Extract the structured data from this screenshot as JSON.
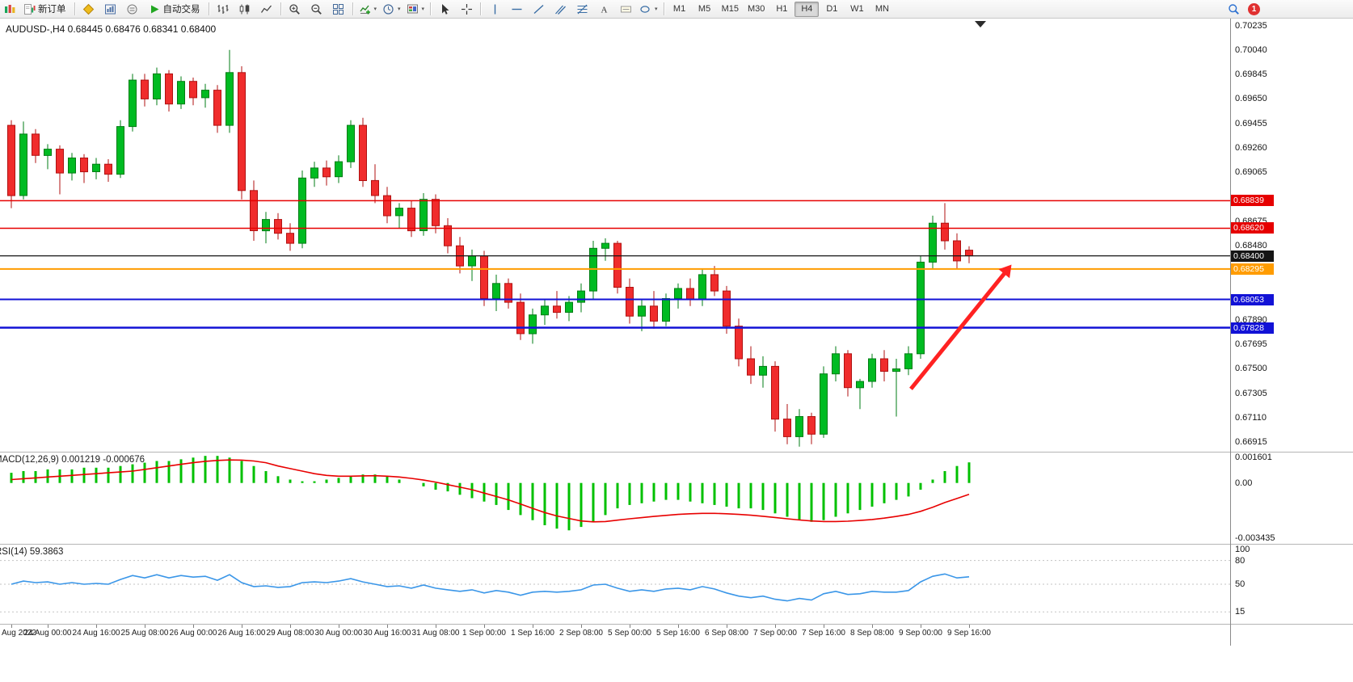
{
  "toolbar": {
    "new_order_label": "新订单",
    "autotrade_label": "自动交易",
    "timeframes": [
      "M1",
      "M5",
      "M15",
      "M30",
      "H1",
      "H4",
      "D1",
      "W1",
      "MN"
    ],
    "active_timeframe": "H4",
    "notification_count": "1"
  },
  "header": {
    "symbol_ohlc": "AUDUSD-,H4 0.68445 0.68476 0.68341 0.68400"
  },
  "indicator_labels": {
    "macd": "MACD(12,26,9) 0.001219 -0.000676",
    "rsi": "RSI(14) 59.3863"
  },
  "chart_data": {
    "type": "candlestick",
    "symbol": "AUDUSD-",
    "timeframe": "H4",
    "last_ohlc": {
      "open": 0.68445,
      "high": 0.68476,
      "low": 0.68341,
      "close": 0.684
    },
    "up_color": "#00bb22",
    "up_stroke": "#007d14",
    "down_color": "#f02c2c",
    "down_stroke": "#b01111",
    "scale": {
      "p_max": 0.7029,
      "p_min": 0.6684
    },
    "price_axis_ticks": [
      "0.70235",
      "0.70040",
      "0.69845",
      "0.69650",
      "0.69455",
      "0.69260",
      "0.69065",
      "0.68675",
      "0.68480",
      "0.67890",
      "0.67695",
      "0.67500",
      "0.67305",
      "0.67110",
      "0.66915"
    ],
    "hlines": [
      {
        "price": 0.68839,
        "label": "0.68839",
        "color": "#e60000",
        "w": 1.5
      },
      {
        "price": 0.6862,
        "label": "0.68620",
        "color": "#e60000",
        "w": 1.5
      },
      {
        "price": 0.684,
        "label": "0.68400",
        "color": "#151515",
        "w": 1.2
      },
      {
        "price": 0.68295,
        "label": "0.68295",
        "color": "#ff9c00",
        "w": 2
      },
      {
        "price": 0.68053,
        "label": "0.68053",
        "color": "#1212d6",
        "w": 2
      },
      {
        "price": 0.67828,
        "label": "0.67828",
        "color": "#1212d6",
        "w": 2.4
      }
    ],
    "arrow": {
      "from_bar": 74.2,
      "from_price": 0.6734,
      "to_bar": 82.5,
      "to_price": 0.6833,
      "color": "#ff2222"
    },
    "candles": [
      [
        0.6944,
        0.6948,
        0.6878,
        0.6888
      ],
      [
        0.6888,
        0.6947,
        0.6885,
        0.6937
      ],
      [
        0.6937,
        0.6941,
        0.6914,
        0.692
      ],
      [
        0.692,
        0.6929,
        0.6909,
        0.6925
      ],
      [
        0.6925,
        0.6928,
        0.6889,
        0.6906
      ],
      [
        0.6906,
        0.6922,
        0.69,
        0.6918
      ],
      [
        0.6918,
        0.6921,
        0.6898,
        0.6907
      ],
      [
        0.6907,
        0.6918,
        0.6901,
        0.6913
      ],
      [
        0.6913,
        0.6917,
        0.6899,
        0.6905
      ],
      [
        0.6905,
        0.6948,
        0.6902,
        0.6943
      ],
      [
        0.6943,
        0.6985,
        0.6939,
        0.698
      ],
      [
        0.698,
        0.6985,
        0.6959,
        0.6965
      ],
      [
        0.6965,
        0.699,
        0.696,
        0.6985
      ],
      [
        0.6985,
        0.6988,
        0.6955,
        0.6961
      ],
      [
        0.6961,
        0.6983,
        0.6957,
        0.6979
      ],
      [
        0.6979,
        0.6982,
        0.696,
        0.6966
      ],
      [
        0.6966,
        0.6977,
        0.6958,
        0.6972
      ],
      [
        0.6972,
        0.6976,
        0.6938,
        0.6944
      ],
      [
        0.6944,
        0.7004,
        0.6938,
        0.6986
      ],
      [
        0.6986,
        0.6991,
        0.6885,
        0.6892
      ],
      [
        0.6892,
        0.69,
        0.6852,
        0.686
      ],
      [
        0.686,
        0.6875,
        0.685,
        0.6869
      ],
      [
        0.6869,
        0.6874,
        0.6853,
        0.6858
      ],
      [
        0.6858,
        0.6866,
        0.6844,
        0.685
      ],
      [
        0.685,
        0.6908,
        0.6846,
        0.6902
      ],
      [
        0.6902,
        0.6915,
        0.6895,
        0.691
      ],
      [
        0.691,
        0.6916,
        0.6896,
        0.6903
      ],
      [
        0.6903,
        0.692,
        0.6898,
        0.6915
      ],
      [
        0.6915,
        0.6948,
        0.691,
        0.6944
      ],
      [
        0.6944,
        0.695,
        0.6895,
        0.69
      ],
      [
        0.69,
        0.6913,
        0.6882,
        0.6888
      ],
      [
        0.6888,
        0.6895,
        0.6866,
        0.6872
      ],
      [
        0.6872,
        0.6882,
        0.6862,
        0.6878
      ],
      [
        0.6878,
        0.6884,
        0.6855,
        0.686
      ],
      [
        0.686,
        0.689,
        0.6856,
        0.6885
      ],
      [
        0.6885,
        0.6889,
        0.6858,
        0.6864
      ],
      [
        0.6864,
        0.687,
        0.6842,
        0.6848
      ],
      [
        0.6848,
        0.6855,
        0.6826,
        0.6832
      ],
      [
        0.6832,
        0.6845,
        0.682,
        0.684
      ],
      [
        0.684,
        0.6844,
        0.68,
        0.6806
      ],
      [
        0.6806,
        0.6825,
        0.6796,
        0.6818
      ],
      [
        0.6818,
        0.6822,
        0.6798,
        0.6803
      ],
      [
        0.6803,
        0.681,
        0.6773,
        0.6778
      ],
      [
        0.6778,
        0.6798,
        0.677,
        0.6793
      ],
      [
        0.6793,
        0.6805,
        0.6785,
        0.68
      ],
      [
        0.68,
        0.6812,
        0.679,
        0.6795
      ],
      [
        0.6795,
        0.6808,
        0.6788,
        0.6803
      ],
      [
        0.6803,
        0.6818,
        0.6795,
        0.6812
      ],
      [
        0.6812,
        0.6852,
        0.6806,
        0.6846
      ],
      [
        0.6846,
        0.6854,
        0.6836,
        0.685
      ],
      [
        0.685,
        0.6852,
        0.681,
        0.6815
      ],
      [
        0.6815,
        0.6822,
        0.6786,
        0.6792
      ],
      [
        0.6792,
        0.6805,
        0.678,
        0.68
      ],
      [
        0.68,
        0.6812,
        0.6782,
        0.6788
      ],
      [
        0.6788,
        0.681,
        0.6784,
        0.6806
      ],
      [
        0.6806,
        0.6818,
        0.6798,
        0.6814
      ],
      [
        0.6814,
        0.6822,
        0.68,
        0.6805
      ],
      [
        0.6805,
        0.683,
        0.68,
        0.6825
      ],
      [
        0.6825,
        0.6832,
        0.6808,
        0.6812
      ],
      [
        0.6812,
        0.6816,
        0.6778,
        0.6784
      ],
      [
        0.6784,
        0.679,
        0.6752,
        0.6758
      ],
      [
        0.6758,
        0.6768,
        0.6738,
        0.6745
      ],
      [
        0.6745,
        0.676,
        0.6735,
        0.6752
      ],
      [
        0.6752,
        0.6756,
        0.67,
        0.671
      ],
      [
        0.671,
        0.6722,
        0.669,
        0.6696
      ],
      [
        0.6696,
        0.6718,
        0.6688,
        0.6712
      ],
      [
        0.6712,
        0.6715,
        0.669,
        0.6698
      ],
      [
        0.6698,
        0.6752,
        0.6695,
        0.6746
      ],
      [
        0.6746,
        0.6768,
        0.674,
        0.6762
      ],
      [
        0.6762,
        0.6765,
        0.6728,
        0.6735
      ],
      [
        0.6735,
        0.6742,
        0.6718,
        0.674
      ],
      [
        0.674,
        0.6762,
        0.6735,
        0.6758
      ],
      [
        0.6758,
        0.6765,
        0.674,
        0.6748
      ],
      [
        0.6748,
        0.6758,
        0.6712,
        0.675
      ],
      [
        0.675,
        0.6768,
        0.6745,
        0.6762
      ],
      [
        0.6762,
        0.684,
        0.6758,
        0.6835
      ],
      [
        0.6835,
        0.6872,
        0.683,
        0.6866
      ],
      [
        0.6866,
        0.6882,
        0.6845,
        0.6852
      ],
      [
        0.6852,
        0.6858,
        0.683,
        0.6836
      ],
      [
        0.68445,
        0.68476,
        0.68341,
        0.684
      ]
    ],
    "time_labels": [
      {
        "bar": 0,
        "text": "Aug 2022",
        "align": "left"
      },
      {
        "bar": 3,
        "text": "24 Aug 00:00"
      },
      {
        "bar": 7,
        "text": "24 Aug 16:00"
      },
      {
        "bar": 11,
        "text": "25 Aug 08:00"
      },
      {
        "bar": 15,
        "text": "26 Aug 00:00"
      },
      {
        "bar": 19,
        "text": "26 Aug 16:00"
      },
      {
        "bar": 23,
        "text": "29 Aug 08:00"
      },
      {
        "bar": 27,
        "text": "30 Aug 00:00"
      },
      {
        "bar": 31,
        "text": "30 Aug 16:00"
      },
      {
        "bar": 35,
        "text": "31 Aug 08:00"
      },
      {
        "bar": 39,
        "text": "1 Sep 00:00"
      },
      {
        "bar": 43,
        "text": "1 Sep 16:00"
      },
      {
        "bar": 47,
        "text": "2 Sep 08:00"
      },
      {
        "bar": 51,
        "text": "5 Sep 00:00"
      },
      {
        "bar": 55,
        "text": "5 Sep 16:00"
      },
      {
        "bar": 59,
        "text": "6 Sep 08:00"
      },
      {
        "bar": 63,
        "text": "7 Sep 00:00"
      },
      {
        "bar": 67,
        "text": "7 Sep 16:00"
      },
      {
        "bar": 71,
        "text": "8 Sep 08:00"
      },
      {
        "bar": 75,
        "text": "9 Sep 00:00"
      },
      {
        "bar": 79,
        "text": "9 Sep 16:00"
      }
    ],
    "macd": {
      "label": "MACD(12,26,9)",
      "current_values": [
        0.001219,
        -0.000676
      ],
      "hist_color": "#00c000",
      "signal_color": "#e80000",
      "range": [
        -0.0036,
        0.0018
      ],
      "axis_labels": [
        {
          "v": 0.001601,
          "t": "0.001601"
        },
        {
          "v": 0,
          "t": "0.00"
        },
        {
          "v": -0.003435,
          "t": "-0.003435"
        }
      ],
      "histogram": [
        0.0006,
        0.0007,
        0.0007,
        0.0008,
        0.0008,
        0.0008,
        0.0009,
        0.0009,
        0.0009,
        0.001,
        0.0011,
        0.0012,
        0.0013,
        0.0013,
        0.0014,
        0.0015,
        0.0016,
        0.0016,
        0.0015,
        0.0013,
        0.001,
        0.0007,
        0.0004,
        0.0002,
        0.0001,
        0.0001,
        0.0002,
        0.0003,
        0.0004,
        0.0005,
        0.0005,
        0.0004,
        0.0002,
        0,
        -0.0002,
        -0.0004,
        -0.0005,
        -0.0007,
        -0.0009,
        -0.0011,
        -0.0013,
        -0.0016,
        -0.0019,
        -0.0022,
        -0.0025,
        -0.0027,
        -0.0028,
        -0.0026,
        -0.0023,
        -0.0019,
        -0.0015,
        -0.0013,
        -0.0012,
        -0.0011,
        -0.001,
        -0.001,
        -0.0011,
        -0.0012,
        -0.0013,
        -0.0014,
        -0.0015,
        -0.0015,
        -0.0016,
        -0.0018,
        -0.002,
        -0.0022,
        -0.0023,
        -0.0022,
        -0.002,
        -0.0018,
        -0.0016,
        -0.0014,
        -0.0012,
        -0.001,
        -0.0008,
        -0.0004,
        0.0002,
        0.0007,
        0.001,
        0.001219
      ],
      "signal": [
        0.0002,
        0.00025,
        0.0003,
        0.00035,
        0.0004,
        0.00045,
        0.0005,
        0.00055,
        0.0006,
        0.00065,
        0.0007,
        0.0008,
        0.0009,
        0.001,
        0.0011,
        0.0012,
        0.00128,
        0.00133,
        0.00136,
        0.00135,
        0.0013,
        0.0012,
        0.001,
        0.00085,
        0.0007,
        0.00055,
        0.00045,
        0.0004,
        0.0004,
        0.00042,
        0.00043,
        0.0004,
        0.00035,
        0.00027,
        0.00017,
        5e-05,
        -0.0001,
        -0.00025,
        -0.0004,
        -0.0006,
        -0.0008,
        -0.001,
        -0.00125,
        -0.0015,
        -0.00175,
        -0.00195,
        -0.0021,
        -0.00225,
        -0.0023,
        -0.00228,
        -0.0022,
        -0.00212,
        -0.00205,
        -0.00198,
        -0.00192,
        -0.00186,
        -0.00182,
        -0.0018,
        -0.0018,
        -0.00182,
        -0.00186,
        -0.00191,
        -0.00197,
        -0.00204,
        -0.00212,
        -0.00219,
        -0.00225,
        -0.00228,
        -0.00228,
        -0.00226,
        -0.00222,
        -0.00216,
        -0.00208,
        -0.00198,
        -0.00186,
        -0.00168,
        -0.00144,
        -0.00116,
        -0.00092,
        -0.000676
      ]
    },
    "rsi": {
      "label": "RSI(14)",
      "current_value": 59.3863,
      "color": "#3a96e8",
      "range": [
        0,
        100
      ],
      "levels": [
        80,
        50,
        15
      ],
      "axis_labels": [
        {
          "v": 100,
          "t": "100"
        },
        {
          "v": 80,
          "t": "80"
        },
        {
          "v": 50,
          "t": "50"
        },
        {
          "v": 15,
          "t": "15"
        }
      ],
      "values": [
        50,
        54,
        52,
        53,
        50,
        52,
        50,
        51,
        50,
        56,
        61,
        58,
        62,
        58,
        61,
        59,
        60,
        55,
        62,
        52,
        47,
        48,
        46,
        47,
        52,
        53,
        52,
        54,
        57,
        53,
        50,
        47,
        48,
        45,
        49,
        45,
        43,
        41,
        43,
        39,
        42,
        40,
        36,
        40,
        41,
        40,
        41,
        43,
        49,
        50,
        45,
        41,
        43,
        41,
        44,
        45,
        43,
        47,
        44,
        39,
        35,
        33,
        35,
        31,
        29,
        32,
        30,
        38,
        41,
        37,
        38,
        41,
        40,
        40,
        42,
        53,
        60,
        63,
        58,
        59.39
      ]
    }
  }
}
